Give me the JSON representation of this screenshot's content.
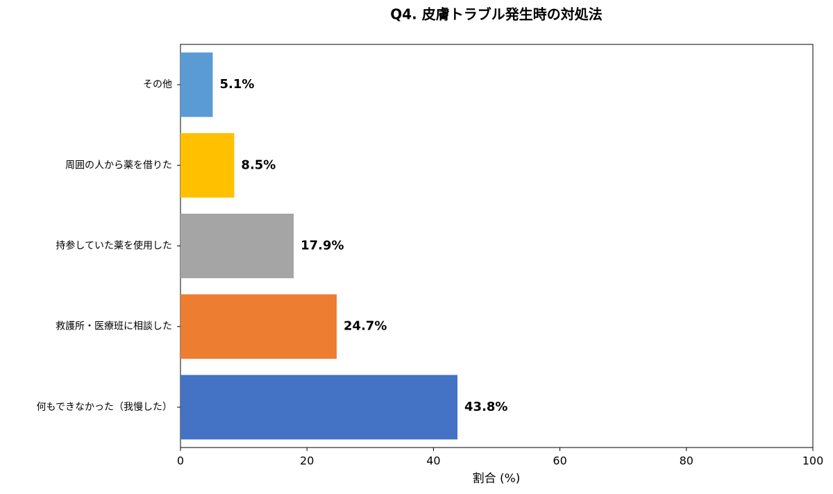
{
  "chart_data": {
    "type": "bar",
    "orientation": "horizontal",
    "title": "Q4. 皮膚トラブル発生時の対処法",
    "xlabel": "割合 (%)",
    "categories": [
      "その他",
      "周囲の人から薬を借りた",
      "持参していた薬を使用した",
      "救護所・医療班に相談した",
      "何もできなかった（我慢した）"
    ],
    "values": [
      5.1,
      8.5,
      17.9,
      24.7,
      43.8
    ],
    "value_labels": [
      "5.1%",
      "8.5%",
      "17.9%",
      "24.7%",
      "43.8%"
    ],
    "colors": [
      "#5b9bd5",
      "#ffc000",
      "#a5a5a5",
      "#ed7d31",
      "#4472c4"
    ],
    "xlim": [
      0,
      100
    ],
    "xticks": [
      0,
      20,
      40,
      60,
      80,
      100
    ],
    "grid": false
  }
}
